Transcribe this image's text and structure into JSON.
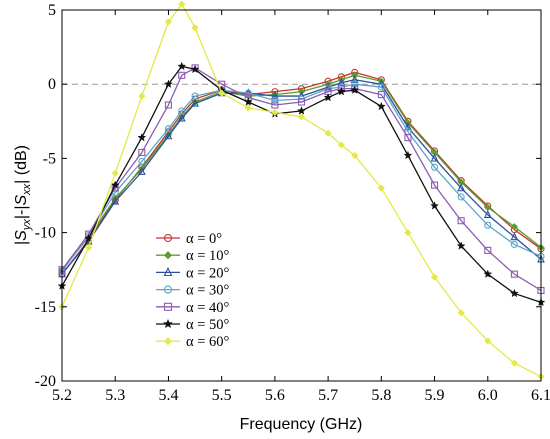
{
  "chart_data": {
    "type": "line",
    "xlabel": "Frequency (GHz)",
    "ylabel": "|S_yx|-|S_xx| (dB)",
    "ylabel_parts": {
      "open": "|",
      "s1": "S",
      "sub1": "yx",
      "mid": "|-|",
      "s2": "S",
      "sub2": "xx",
      "close": "| (dB)"
    },
    "xlim": [
      5.2,
      6.1
    ],
    "ylim": [
      -20,
      5
    ],
    "xticks": [
      "5.2",
      "5.3",
      "5.4",
      "5.5",
      "5.6",
      "5.7",
      "5.8",
      "5.9",
      "6.0",
      "6.1"
    ],
    "yticks": [
      "5",
      "0",
      "-5",
      "-10",
      "-15",
      "-20"
    ],
    "reference_line": 0,
    "grid": false,
    "legend_position": "center-left",
    "x": [
      5.2,
      5.25,
      5.3,
      5.35,
      5.4,
      5.425,
      5.45,
      5.5,
      5.55,
      5.6,
      5.65,
      5.7,
      5.725,
      5.75,
      5.8,
      5.85,
      5.9,
      5.95,
      6.0,
      6.05,
      6.1
    ],
    "series": [
      {
        "name": "α = 0°",
        "color": "#c0392b",
        "marker": "circle",
        "values": [
          -12.8,
          -10.5,
          -7.8,
          -5.6,
          -3.2,
          -2.0,
          -1.0,
          -0.4,
          -0.7,
          -0.5,
          -0.3,
          0.2,
          0.5,
          0.8,
          0.3,
          -2.5,
          -4.5,
          -6.5,
          -8.2,
          -9.8,
          -11.1
        ]
      },
      {
        "name": "α = 10°",
        "color": "#5a9e2f",
        "marker": "diamond",
        "values": [
          -12.5,
          -10.3,
          -7.7,
          -5.7,
          -3.4,
          -2.2,
          -1.2,
          -0.5,
          -0.8,
          -0.7,
          -0.5,
          0.0,
          0.3,
          0.6,
          0.2,
          -2.6,
          -4.6,
          -6.6,
          -8.3,
          -9.6,
          -11.0
        ]
      },
      {
        "name": "α = 20°",
        "color": "#2c4fa0",
        "marker": "triangle",
        "values": [
          -12.8,
          -10.6,
          -7.9,
          -5.9,
          -3.5,
          -2.3,
          -1.3,
          -0.6,
          -0.6,
          -0.8,
          -0.8,
          -0.2,
          0.1,
          0.3,
          0.0,
          -2.9,
          -5.0,
          -7.0,
          -8.8,
          -10.3,
          -11.8
        ]
      },
      {
        "name": "α = 30°",
        "color": "#5aa8c8",
        "marker": "circle",
        "values": [
          -12.6,
          -10.2,
          -7.3,
          -5.2,
          -3.0,
          -1.8,
          -0.8,
          -0.4,
          -0.6,
          -1.1,
          -1.0,
          -0.3,
          -0.2,
          0.0,
          -0.2,
          -3.2,
          -5.6,
          -7.6,
          -9.5,
          -10.8,
          -11.6
        ]
      },
      {
        "name": "α = 40°",
        "color": "#8e5bb5",
        "marker": "square",
        "values": [
          -12.5,
          -10.1,
          -7.0,
          -4.6,
          -1.4,
          0.6,
          1.1,
          0.0,
          -0.9,
          -1.4,
          -1.2,
          -0.5,
          -0.3,
          -0.3,
          -0.7,
          -3.6,
          -6.8,
          -9.2,
          -11.2,
          -12.8,
          -13.9
        ]
      },
      {
        "name": "α = 50°",
        "color": "#111111",
        "marker": "star",
        "values": [
          -13.6,
          -10.4,
          -6.8,
          -3.6,
          0.0,
          1.2,
          1.0,
          -0.4,
          -1.2,
          -2.0,
          -1.8,
          -0.9,
          -0.5,
          -0.4,
          -1.5,
          -4.8,
          -8.2,
          -10.9,
          -12.8,
          -14.1,
          -14.7
        ]
      },
      {
        "name": "α = 60°",
        "color": "#e4e84a",
        "marker": "diamond",
        "values": [
          -15.0,
          -11.0,
          -6.0,
          -0.8,
          4.2,
          5.4,
          3.8,
          -0.6,
          -1.6,
          -1.9,
          -2.2,
          -3.3,
          -4.1,
          -4.8,
          -7.0,
          -10.0,
          -13.0,
          -15.4,
          -17.3,
          -18.8,
          -19.7
        ]
      }
    ]
  }
}
